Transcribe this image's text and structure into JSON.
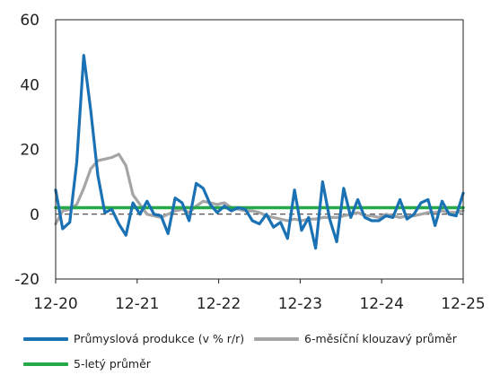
{
  "chart_data": {
    "type": "line",
    "title": "",
    "xlabel": "",
    "ylabel": "",
    "ylim": [
      -20,
      60
    ],
    "yticks": [
      -20,
      0,
      20,
      40,
      60
    ],
    "xticks": [
      "12-20",
      "12-21",
      "12-22",
      "12-23",
      "12-24",
      "12-25"
    ],
    "grid": false,
    "legend_position": "bottom",
    "zero_line": "dashed",
    "x_start": "2020-12",
    "series": [
      {
        "name": "Průmyslová produkce (v % r/r)",
        "color": "#1a72b4",
        "values": [
          7.5,
          -4.5,
          -2.5,
          16,
          49,
          32,
          12,
          0.5,
          1.5,
          -3,
          -6.5,
          3.5,
          0,
          4,
          0,
          -0.5,
          -6,
          5,
          3.5,
          -2,
          9.5,
          8,
          3,
          0.5,
          2.5,
          1,
          2,
          1.5,
          -2,
          -3,
          0,
          -4,
          -2.5,
          -7.5,
          7.5,
          -5,
          -1,
          -10.5,
          10,
          -1.5,
          -8.5,
          8,
          -1,
          4.5,
          -1,
          -2,
          -2,
          -0.5,
          -1,
          4.5,
          -1.5,
          0,
          3.5,
          4.5,
          -3.5,
          4,
          0,
          -0.5,
          6.5
        ]
      },
      {
        "name": "6-měsíční klouzavý průměr",
        "color": "#a5a5a5",
        "values": [
          -3,
          1,
          1.5,
          3,
          8,
          14,
          16.5,
          17,
          17.5,
          18.5,
          15,
          6,
          3,
          0,
          -0.5,
          -1,
          0,
          1,
          1.5,
          0.5,
          2.5,
          4,
          3.5,
          3,
          3.5,
          2,
          1.5,
          1,
          1,
          0.5,
          -0.5,
          -1,
          -1.5,
          -2,
          -1.5,
          -2,
          -1.5,
          -1.5,
          -1,
          -1,
          -1,
          -0.5,
          0,
          0.5,
          -0.5,
          -0.5,
          -1,
          0,
          -0.5,
          -1,
          -0.5,
          -0.5,
          0,
          0.5,
          0.5,
          1,
          0.5,
          0.5,
          1
        ]
      },
      {
        "name": "5-letý průměr",
        "color": "#26a948",
        "values": [
          2,
          2
        ]
      }
    ]
  }
}
